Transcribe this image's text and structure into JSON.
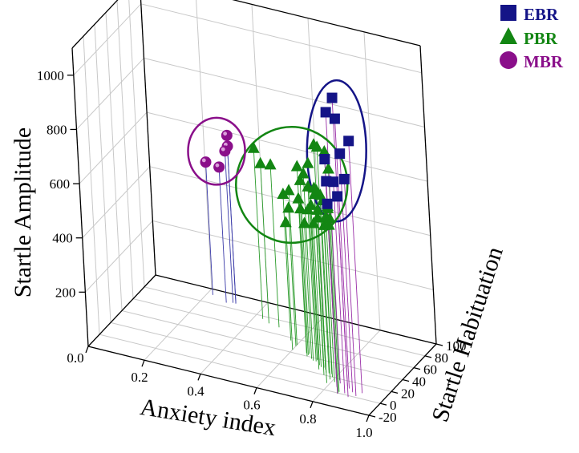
{
  "chart_data": {
    "type": "scatter3d",
    "title": "",
    "xlabel": "Anxiety index",
    "ylabel": "Startle Habituation",
    "zlabel": "Startle Amplitude",
    "xlim": [
      0.0,
      1.0
    ],
    "ylim": [
      -20,
      100
    ],
    "zlim": [
      0,
      1100
    ],
    "x_ticks": [
      "0.0",
      "0.2",
      "0.4",
      "0.6",
      "0.8",
      "1.0"
    ],
    "y_ticks": [
      "-20",
      "0",
      "20",
      "40",
      "60",
      "80",
      "100"
    ],
    "z_ticks": [
      "200",
      "400",
      "600",
      "800",
      "1000"
    ],
    "legend_position": "top-right",
    "series": [
      {
        "name": "EBR",
        "marker": "square",
        "color": "#141487",
        "stem_color": "#9a2fa8",
        "points": [
          {
            "x": 0.86,
            "y": 12,
            "z": 1065
          },
          {
            "x": 0.83,
            "y": 14,
            "z": 1000
          },
          {
            "x": 0.87,
            "y": 10,
            "z": 995
          },
          {
            "x": 0.92,
            "y": 8,
            "z": 930
          },
          {
            "x": 0.89,
            "y": 6,
            "z": 880
          },
          {
            "x": 0.83,
            "y": 8,
            "z": 840
          },
          {
            "x": 0.91,
            "y": 2,
            "z": 800
          },
          {
            "x": 0.87,
            "y": 2,
            "z": 780
          },
          {
            "x": 0.84,
            "y": 4,
            "z": 770
          },
          {
            "x": 0.89,
            "y": -2,
            "z": 740
          },
          {
            "x": 0.85,
            "y": -1,
            "z": 700
          }
        ]
      },
      {
        "name": "PBR",
        "marker": "triangle",
        "color": "#138613",
        "stem_color": "#2a9a2a",
        "points": [
          {
            "x": 0.75,
            "y": 28,
            "z": 830
          },
          {
            "x": 0.77,
            "y": 24,
            "z": 835
          },
          {
            "x": 0.8,
            "y": 22,
            "z": 830
          },
          {
            "x": 0.82,
            "y": 18,
            "z": 780
          },
          {
            "x": 0.73,
            "y": 26,
            "z": 760
          },
          {
            "x": 0.79,
            "y": 10,
            "z": 710
          },
          {
            "x": 0.66,
            "y": 40,
            "z": 700
          },
          {
            "x": 0.69,
            "y": 36,
            "z": 690
          },
          {
            "x": 0.76,
            "y": 20,
            "z": 690
          },
          {
            "x": 0.79,
            "y": 16,
            "z": 680
          },
          {
            "x": 0.84,
            "y": 4,
            "z": 670
          },
          {
            "x": 0.66,
            "y": 44,
            "z": 640
          },
          {
            "x": 0.7,
            "y": 38,
            "z": 640
          },
          {
            "x": 0.74,
            "y": 30,
            "z": 640
          },
          {
            "x": 0.78,
            "y": 24,
            "z": 640
          },
          {
            "x": 0.81,
            "y": 18,
            "z": 640
          },
          {
            "x": 0.85,
            "y": 2,
            "z": 640
          },
          {
            "x": 0.43,
            "y": 76,
            "z": 630
          },
          {
            "x": 0.5,
            "y": 70,
            "z": 600
          },
          {
            "x": 0.72,
            "y": 32,
            "z": 590
          },
          {
            "x": 0.76,
            "y": 24,
            "z": 600
          },
          {
            "x": 0.81,
            "y": 14,
            "z": 610
          },
          {
            "x": 0.85,
            "y": 0,
            "z": 620
          },
          {
            "x": 0.46,
            "y": 72,
            "z": 590
          },
          {
            "x": 0.6,
            "y": 52,
            "z": 570
          },
          {
            "x": 0.65,
            "y": 44,
            "z": 570
          },
          {
            "x": 0.7,
            "y": 36,
            "z": 560
          },
          {
            "x": 0.75,
            "y": 28,
            "z": 560
          },
          {
            "x": 0.79,
            "y": 20,
            "z": 560
          },
          {
            "x": 0.57,
            "y": 56,
            "z": 540
          },
          {
            "x": 0.66,
            "y": 42,
            "z": 540
          },
          {
            "x": 0.73,
            "y": 30,
            "z": 530
          },
          {
            "x": 0.6,
            "y": 50,
            "z": 510
          },
          {
            "x": 0.68,
            "y": 38,
            "z": 500
          },
          {
            "x": 0.6,
            "y": 44,
            "z": 470
          }
        ]
      },
      {
        "name": "MBR",
        "marker": "sphere",
        "color": "#8a0f8a",
        "stem_color": "#3a3aa8",
        "points": [
          {
            "x": 0.31,
            "y": 88,
            "z": 620
          },
          {
            "x": 0.31,
            "y": 88,
            "z": 580
          },
          {
            "x": 0.3,
            "y": 88,
            "z": 560
          },
          {
            "x": 0.28,
            "y": 86,
            "z": 500
          },
          {
            "x": 0.22,
            "y": 92,
            "z": 490
          }
        ]
      }
    ]
  }
}
